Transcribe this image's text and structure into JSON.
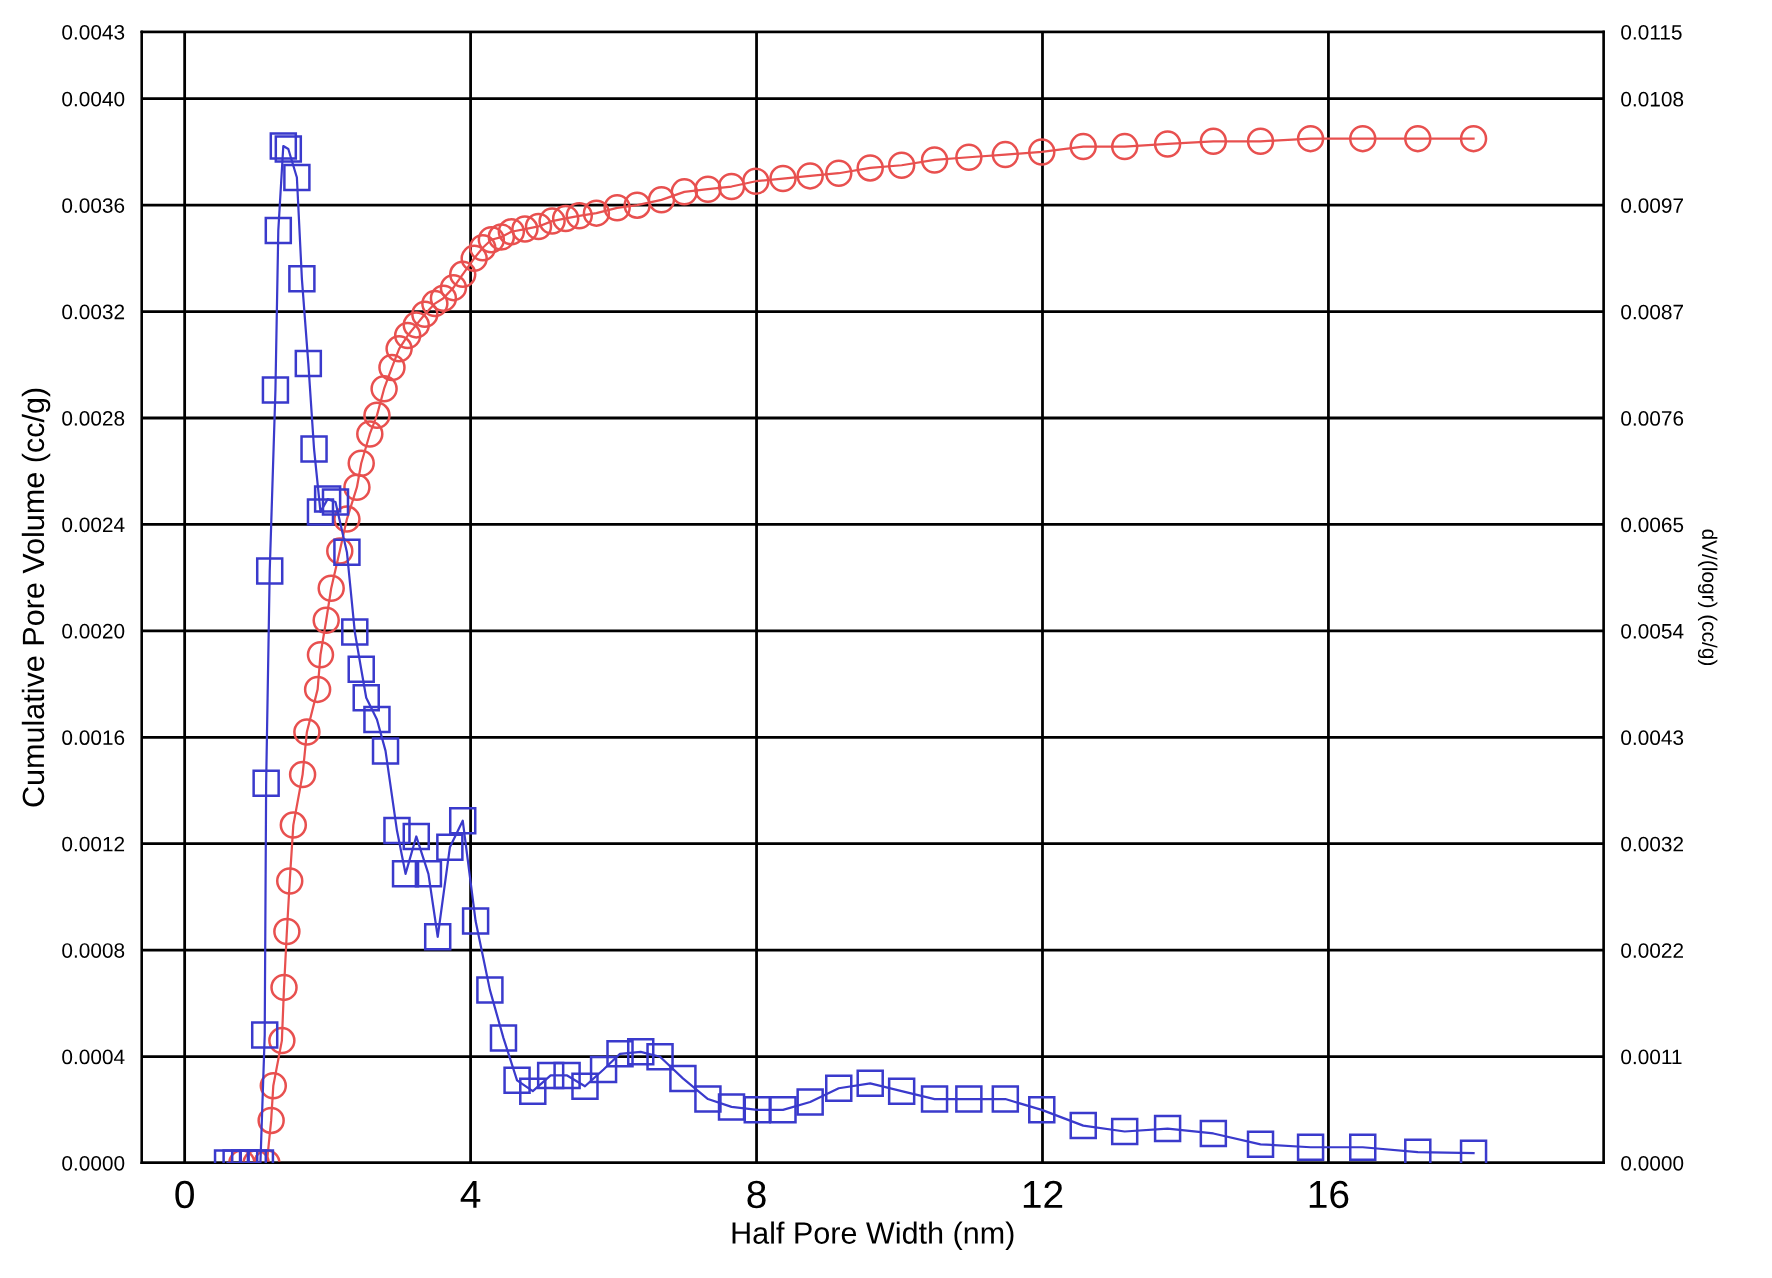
{
  "chart_data": {
    "type": "line",
    "xlabel": "Half Pore Width (nm)",
    "ylabel": "Cumulative Pore Volume (cc/g)",
    "y2label": "dV/(logr) (cc/g)",
    "xlim": [
      -0.6,
      19.85
    ],
    "xticks": [
      0,
      4,
      8,
      12,
      16
    ],
    "ylim": [
      0,
      0.004251
    ],
    "yticks": [
      {
        "value": 0,
        "label": "0.0000"
      },
      {
        "value": 0.0004,
        "label": "0.0004"
      },
      {
        "value": 0.0008,
        "label": "0.0008"
      },
      {
        "value": 0.0012,
        "label": "0.0012"
      },
      {
        "value": 0.0016,
        "label": "0.0016"
      },
      {
        "value": 0.002,
        "label": "0.0020"
      },
      {
        "value": 0.0024,
        "label": "0.0024"
      },
      {
        "value": 0.0028,
        "label": "0.0028"
      },
      {
        "value": 0.0032,
        "label": "0.0032"
      },
      {
        "value": 0.0036,
        "label": "0.0036"
      },
      {
        "value": 0.004,
        "label": "0.0040"
      },
      {
        "value": 0.004251,
        "label": "0.0043"
      }
    ],
    "y2lim": [
      0,
      0.0115
    ],
    "y2ticks": [
      {
        "value": 0,
        "label": "0.0000"
      },
      {
        "value": 0.001082,
        "label": "0.0011"
      },
      {
        "value": 0.002164,
        "label": "0.0022"
      },
      {
        "value": 0.003246,
        "label": "0.0032"
      },
      {
        "value": 0.004328,
        "label": "0.0043"
      },
      {
        "value": 0.00541,
        "label": "0.0054"
      },
      {
        "value": 0.006492,
        "label": "0.0065"
      },
      {
        "value": 0.007574,
        "label": "0.0076"
      },
      {
        "value": 0.008656,
        "label": "0.0087"
      },
      {
        "value": 0.009738,
        "label": "0.0097"
      },
      {
        "value": 0.01082,
        "label": "0.0108"
      },
      {
        "value": 0.0115,
        "label": "0.0115"
      }
    ],
    "grid": true,
    "series": [
      {
        "color": "#e8504f",
        "marker": "circle",
        "axis": "y",
        "x": [
          0.8,
          1.0,
          1.15,
          1.21,
          1.24,
          1.36,
          1.39,
          1.43,
          1.47,
          1.52,
          1.65,
          1.71,
          1.86,
          1.9,
          1.98,
          2.05,
          2.17,
          2.27,
          2.41,
          2.47,
          2.59,
          2.69,
          2.79,
          2.9,
          3.0,
          3.12,
          3.24,
          3.36,
          3.5,
          3.62,
          3.76,
          3.89,
          4.05,
          4.17,
          4.29,
          4.43,
          4.57,
          4.76,
          4.95,
          5.14,
          5.33,
          5.52,
          5.76,
          6.05,
          6.33,
          6.67,
          6.99,
          7.32,
          7.65,
          7.99,
          8.37,
          8.75,
          9.15,
          9.59,
          10.03,
          10.49,
          10.97,
          11.48,
          11.99,
          12.57,
          13.15,
          13.75,
          14.39,
          15.05,
          15.75,
          16.48,
          17.25,
          18.03
        ],
        "values": [
          0,
          0,
          0,
          0.00016,
          0.00029,
          0.00046,
          0.00066,
          0.00087,
          0.00106,
          0.00127,
          0.00146,
          0.00162,
          0.00178,
          0.00191,
          0.00204,
          0.00216,
          0.0023,
          0.00242,
          0.00254,
          0.00263,
          0.00274,
          0.00281,
          0.00291,
          0.00299,
          0.00306,
          0.00311,
          0.00315,
          0.00319,
          0.00323,
          0.00325,
          0.00329,
          0.00334,
          0.0034,
          0.00344,
          0.00347,
          0.00348,
          0.0035,
          0.00351,
          0.00352,
          0.00354,
          0.00355,
          0.00356,
          0.00357,
          0.00359,
          0.0036,
          0.00362,
          0.00365,
          0.00366,
          0.00367,
          0.00369,
          0.0037,
          0.00371,
          0.00372,
          0.00374,
          0.00375,
          0.00377,
          0.00378,
          0.00379,
          0.0038,
          0.00382,
          0.00382,
          0.00383,
          0.00384,
          0.00384,
          0.00385,
          0.00385,
          0.00385,
          0.00385
        ]
      },
      {
        "color": "#3a3acc",
        "marker": "square",
        "axis": "y2",
        "x": [
          0.6,
          0.72,
          0.84,
          0.96,
          1.06,
          1.12,
          1.14,
          1.19,
          1.27,
          1.31,
          1.38,
          1.45,
          1.57,
          1.64,
          1.73,
          1.81,
          1.9,
          2.0,
          2.11,
          2.27,
          2.38,
          2.47,
          2.54,
          2.69,
          2.81,
          2.97,
          3.09,
          3.24,
          3.41,
          3.54,
          3.71,
          3.89,
          4.07,
          4.27,
          4.46,
          4.65,
          4.87,
          5.12,
          5.35,
          5.6,
          5.86,
          6.09,
          6.38,
          6.65,
          6.97,
          7.32,
          7.65,
          8.01,
          8.37,
          8.75,
          9.15,
          9.59,
          10.03,
          10.49,
          10.97,
          11.48,
          11.99,
          12.57,
          13.15,
          13.75,
          14.39,
          15.05,
          15.75,
          16.48,
          17.25,
          18.03
        ],
        "values": [
          0,
          0,
          0,
          0,
          0,
          0.0013,
          0.00386,
          0.00602,
          0.00786,
          0.00948,
          0.01034,
          0.01031,
          0.01002,
          0.00899,
          0.00813,
          0.00726,
          0.00662,
          0.00675,
          0.00672,
          0.00621,
          0.0054,
          0.00502,
          0.00473,
          0.00451,
          0.00419,
          0.00338,
          0.00294,
          0.00332,
          0.00294,
          0.0023,
          0.00321,
          0.00348,
          0.00246,
          0.00176,
          0.00127,
          0.00084,
          0.00073,
          0.00089,
          0.00089,
          0.00078,
          0.00095,
          0.00111,
          0.00113,
          0.00108,
          0.00086,
          0.00065,
          0.00057,
          0.00054,
          0.00054,
          0.00062,
          0.00076,
          0.00081,
          0.00073,
          0.00065,
          0.00065,
          0.00065,
          0.00054,
          0.00038,
          0.00032,
          0.00035,
          0.0003,
          0.00019,
          0.00016,
          0.00016,
          0.00011,
          0.0001
        ]
      }
    ]
  }
}
